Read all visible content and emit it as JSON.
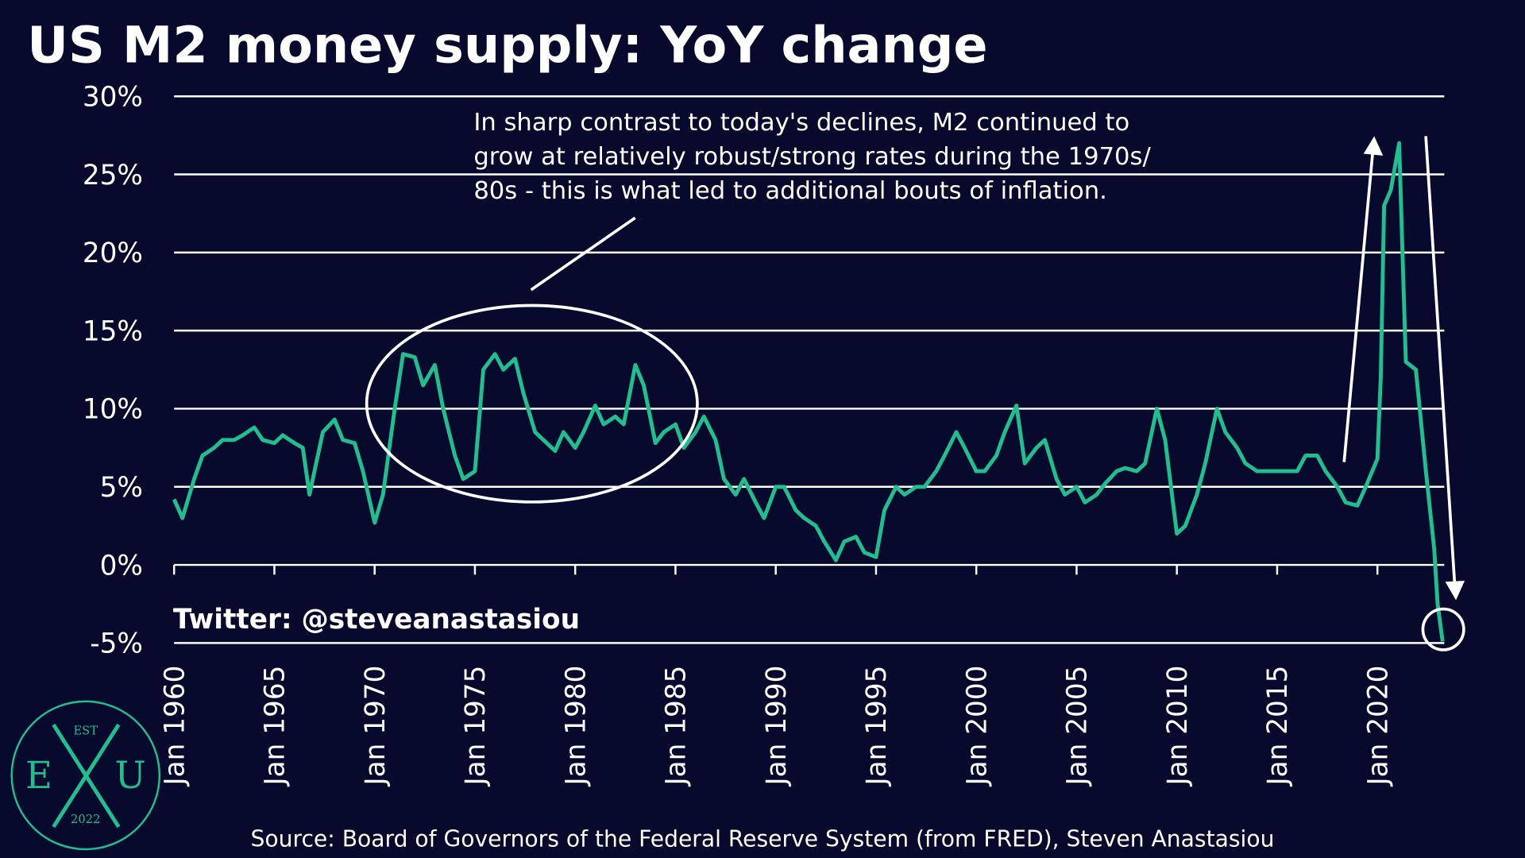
{
  "chart_data": {
    "type": "line",
    "title": "US M2 money supply: YoY change",
    "annotation": [
      "In sharp contrast to today's declines, M2 continued to",
      "grow at relatively robust/strong rates during the 1970s/",
      "80s - this is what led to additional bouts of inflation."
    ],
    "watermark": "Twitter: @steveanastasiou",
    "source": "Source: Board of Governors of the Federal Reserve System (from FRED), Steven Anastasiou",
    "logo": {
      "top": "EST",
      "left": "E",
      "right": "U",
      "bottom": "2022"
    },
    "xlim": [
      "1960-01",
      "2023-05"
    ],
    "xticks": [
      {
        "value": "1960-01",
        "label": "Jan 1960"
      },
      {
        "value": "1965-01",
        "label": "Jan 1965"
      },
      {
        "value": "1970-01",
        "label": "Jan 1970"
      },
      {
        "value": "1975-01",
        "label": "Jan 1975"
      },
      {
        "value": "1980-01",
        "label": "Jan 1980"
      },
      {
        "value": "1985-01",
        "label": "Jan 1985"
      },
      {
        "value": "1990-01",
        "label": "Jan 1990"
      },
      {
        "value": "1995-01",
        "label": "Jan 1995"
      },
      {
        "value": "2000-01",
        "label": "Jan 2000"
      },
      {
        "value": "2005-01",
        "label": "Jan 2005"
      },
      {
        "value": "2010-01",
        "label": "Jan 2010"
      },
      {
        "value": "2015-01",
        "label": "Jan 2015"
      },
      {
        "value": "2020-01",
        "label": "Jan 2020"
      }
    ],
    "ylim": [
      -5,
      30
    ],
    "yticks": [
      {
        "value": 30,
        "label": "30%"
      },
      {
        "value": 25,
        "label": "25%"
      },
      {
        "value": 20,
        "label": "20%"
      },
      {
        "value": 15,
        "label": "15%"
      },
      {
        "value": 10,
        "label": "10%"
      },
      {
        "value": 5,
        "label": "5%"
      },
      {
        "value": 0,
        "label": "0%"
      },
      {
        "value": -5,
        "label": "-5%"
      }
    ],
    "grid": true,
    "x": [
      "1960-01",
      "1960-06",
      "1961-01",
      "1961-06",
      "1962-01",
      "1962-06",
      "1963-01",
      "1963-06",
      "1964-01",
      "1964-06",
      "1965-01",
      "1965-06",
      "1966-01",
      "1966-06",
      "1966-10",
      "1967-01",
      "1967-06",
      "1968-01",
      "1968-06",
      "1969-01",
      "1969-06",
      "1970-01",
      "1970-06",
      "1971-01",
      "1971-06",
      "1972-01",
      "1972-06",
      "1973-01",
      "1973-06",
      "1974-01",
      "1974-06",
      "1975-01",
      "1975-06",
      "1976-01",
      "1976-06",
      "1977-01",
      "1977-06",
      "1978-01",
      "1978-06",
      "1979-01",
      "1979-06",
      "1980-01",
      "1980-06",
      "1981-01",
      "1981-06",
      "1982-01",
      "1982-06",
      "1983-01",
      "1983-06",
      "1984-01",
      "1984-06",
      "1985-01",
      "1985-06",
      "1986-01",
      "1986-06",
      "1987-01",
      "1987-06",
      "1988-01",
      "1988-06",
      "1989-01",
      "1989-06",
      "1990-01",
      "1990-06",
      "1991-01",
      "1991-06",
      "1992-01",
      "1992-06",
      "1993-01",
      "1993-06",
      "1994-01",
      "1994-06",
      "1995-01",
      "1995-06",
      "1996-01",
      "1996-06",
      "1997-01",
      "1997-06",
      "1998-01",
      "1998-06",
      "1999-01",
      "1999-06",
      "2000-01",
      "2000-06",
      "2001-01",
      "2001-06",
      "2002-01",
      "2002-06",
      "2003-01",
      "2003-06",
      "2004-01",
      "2004-06",
      "2005-01",
      "2005-06",
      "2006-01",
      "2006-06",
      "2007-01",
      "2007-06",
      "2008-01",
      "2008-06",
      "2009-01",
      "2009-06",
      "2010-01",
      "2010-06",
      "2011-01",
      "2011-06",
      "2012-01",
      "2012-06",
      "2013-01",
      "2013-06",
      "2014-01",
      "2014-06",
      "2015-01",
      "2015-06",
      "2016-01",
      "2016-06",
      "2017-01",
      "2017-06",
      "2018-01",
      "2018-06",
      "2019-01",
      "2019-06",
      "2020-01",
      "2020-03",
      "2020-05",
      "2020-09",
      "2021-02",
      "2021-06",
      "2021-12",
      "2022-06",
      "2022-11",
      "2023-01",
      "2023-04"
    ],
    "series": [
      {
        "name": "M2 YoY change",
        "color": "#1fbf8f",
        "values": [
          4.2,
          3.0,
          5.5,
          7.0,
          7.5,
          8.0,
          8.0,
          8.3,
          8.8,
          8.0,
          7.8,
          8.3,
          7.8,
          7.5,
          4.5,
          6.0,
          8.5,
          9.3,
          8.0,
          7.8,
          6.0,
          2.7,
          4.5,
          10.0,
          13.5,
          13.3,
          11.5,
          12.8,
          10.0,
          7.0,
          5.5,
          6.0,
          12.5,
          13.5,
          12.5,
          13.2,
          11.0,
          8.5,
          8.0,
          7.3,
          8.5,
          7.5,
          8.5,
          10.2,
          9.0,
          9.5,
          9.0,
          12.8,
          11.5,
          7.8,
          8.5,
          9.0,
          7.5,
          8.5,
          9.5,
          8.0,
          5.5,
          4.5,
          5.5,
          4.0,
          3.0,
          5.0,
          5.0,
          3.5,
          3.0,
          2.5,
          1.5,
          0.3,
          1.5,
          1.8,
          0.8,
          0.5,
          3.5,
          5.0,
          4.5,
          5.0,
          5.0,
          6.0,
          7.0,
          8.5,
          7.5,
          6.0,
          6.0,
          7.0,
          8.5,
          10.2,
          6.5,
          7.5,
          8.0,
          5.5,
          4.5,
          5.0,
          4.0,
          4.5,
          5.2,
          6.0,
          6.2,
          6.0,
          6.5,
          10.0,
          8.0,
          2.0,
          2.5,
          4.5,
          6.5,
          10.0,
          8.5,
          7.5,
          6.5,
          6.0,
          6.0,
          6.0,
          6.0,
          6.0,
          7.0,
          7.0,
          6.0,
          5.0,
          4.0,
          3.8,
          5.0,
          6.8,
          12.0,
          23.0,
          24.0,
          27.0,
          13.0,
          12.5,
          6.0,
          1.0,
          -2.5,
          -4.9
        ]
      }
    ]
  }
}
